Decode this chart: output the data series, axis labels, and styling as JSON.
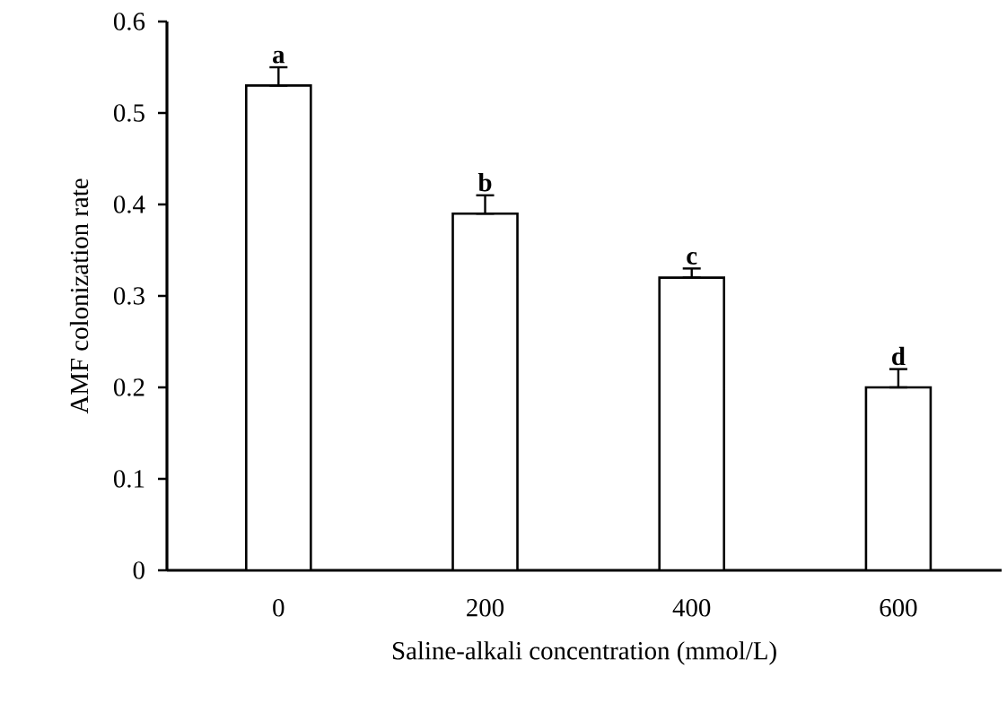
{
  "chart_data": {
    "type": "bar",
    "xlabel": "Saline-alkali concentration (mmol/L)",
    "ylabel": "AMF colonization rate",
    "categories": [
      "0",
      "200",
      "400",
      "600"
    ],
    "values": [
      0.53,
      0.39,
      0.32,
      0.2
    ],
    "errors": [
      [
        0.53,
        0.55
      ],
      [
        0.39,
        0.41
      ],
      [
        0.32,
        0.33
      ],
      [
        0.2,
        0.22
      ]
    ],
    "color": "#ffffff",
    "ylim": [
      0,
      0.6
    ],
    "yticks": [
      0,
      0.1,
      0.2,
      0.3,
      0.4,
      0.5,
      0.6
    ],
    "annotations": [
      {
        "text": "a",
        "x": "0",
        "y": 0.55
      },
      {
        "text": "b",
        "x": "200",
        "y": 0.41
      },
      {
        "text": "c",
        "x": "400",
        "y": 0.33
      },
      {
        "text": "d",
        "x": "600",
        "y": 0.22
      }
    ]
  }
}
